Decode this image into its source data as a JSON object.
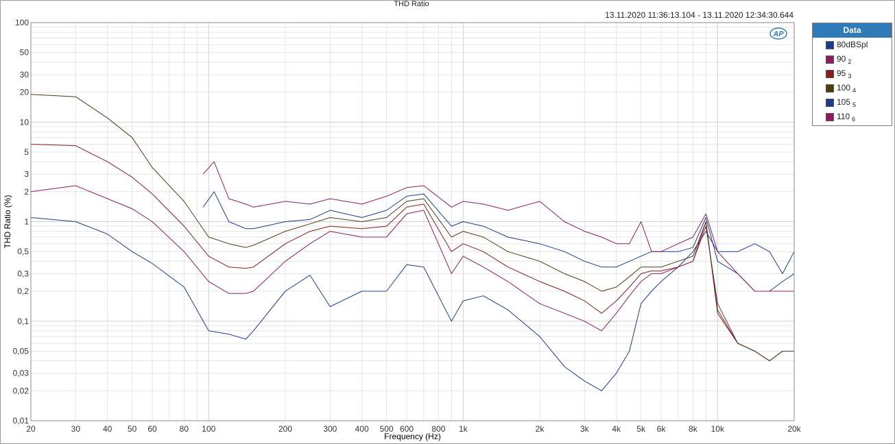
{
  "window": {
    "title": "THD Ratio",
    "time_range": "13.11.2020 11:36:13.104 - 13.11.2020 12:34:30.644"
  },
  "legend": {
    "header": "Data",
    "items": [
      {
        "label": "80dBSpl",
        "sub": "",
        "color": "#1a3b8c"
      },
      {
        "label": "90",
        "sub": "2",
        "color": "#8f1c5f"
      },
      {
        "label": "95",
        "sub": "3",
        "color": "#8a1c1c"
      },
      {
        "label": "100",
        "sub": "4",
        "color": "#4f3a10"
      },
      {
        "label": "105",
        "sub": "5",
        "color": "#1a3b8c"
      },
      {
        "label": "110",
        "sub": "6",
        "color": "#8f1c5f"
      }
    ]
  },
  "logo": {
    "text": "AP",
    "color": "#2e7bb8"
  },
  "chart_data": {
    "type": "line",
    "title": "THD Ratio",
    "xlabel": "Frequency (Hz)",
    "ylabel": "THD Ratio (%)",
    "x_scale": "log",
    "y_scale": "log",
    "xlim": [
      20,
      20000
    ],
    "ylim": [
      0.01,
      100
    ],
    "grid": true,
    "legend_position": "right",
    "x_ticks": [
      {
        "value": 20,
        "label": "20"
      },
      {
        "value": 30,
        "label": "30"
      },
      {
        "value": 40,
        "label": "40"
      },
      {
        "value": 50,
        "label": "50"
      },
      {
        "value": 60,
        "label": "60"
      },
      {
        "value": 80,
        "label": "80"
      },
      {
        "value": 100,
        "label": "100"
      },
      {
        "value": 200,
        "label": "200"
      },
      {
        "value": 300,
        "label": "300"
      },
      {
        "value": 400,
        "label": "400"
      },
      {
        "value": 500,
        "label": "500"
      },
      {
        "value": 600,
        "label": "600"
      },
      {
        "value": 800,
        "label": "800"
      },
      {
        "value": 1000,
        "label": "1k"
      },
      {
        "value": 2000,
        "label": "2k"
      },
      {
        "value": 3000,
        "label": "3k"
      },
      {
        "value": 4000,
        "label": "4k"
      },
      {
        "value": 5000,
        "label": "5k"
      },
      {
        "value": 6000,
        "label": "6k"
      },
      {
        "value": 8000,
        "label": "8k"
      },
      {
        "value": 10000,
        "label": "10k"
      },
      {
        "value": 20000,
        "label": "20k"
      }
    ],
    "y_ticks": [
      {
        "value": 100,
        "label": "100"
      },
      {
        "value": 50,
        "label": "50"
      },
      {
        "value": 30,
        "label": "30"
      },
      {
        "value": 20,
        "label": "20"
      },
      {
        "value": 10,
        "label": "10"
      },
      {
        "value": 5,
        "label": "5"
      },
      {
        "value": 3,
        "label": "3"
      },
      {
        "value": 2,
        "label": "2"
      },
      {
        "value": 1,
        "label": "1"
      },
      {
        "value": 0.5,
        "label": "0,5"
      },
      {
        "value": 0.3,
        "label": "0,3"
      },
      {
        "value": 0.2,
        "label": "0,2"
      },
      {
        "value": 0.1,
        "label": "0,1"
      },
      {
        "value": 0.05,
        "label": "0,05"
      },
      {
        "value": 0.03,
        "label": "0,03"
      },
      {
        "value": 0.02,
        "label": "0,02"
      },
      {
        "value": 0.01,
        "label": "0,01"
      }
    ],
    "series": [
      {
        "name": "80dBSpl",
        "color": "#1a3b8c",
        "x": [
          20,
          30,
          40,
          50,
          60,
          80,
          100,
          120,
          140,
          150,
          200,
          250,
          300,
          400,
          500,
          600,
          700,
          900,
          1000,
          1200,
          1500,
          2000,
          2500,
          3000,
          3500,
          4000,
          4500,
          5000,
          5500,
          6000,
          7000,
          8000,
          9000,
          10000,
          12000,
          14000,
          16000,
          18000,
          20000
        ],
        "y": [
          1.1,
          1.0,
          0.75,
          0.5,
          0.38,
          0.22,
          0.08,
          0.074,
          0.066,
          0.08,
          0.2,
          0.29,
          0.14,
          0.2,
          0.2,
          0.37,
          0.35,
          0.1,
          0.16,
          0.18,
          0.13,
          0.07,
          0.035,
          0.025,
          0.02,
          0.03,
          0.05,
          0.15,
          0.2,
          0.25,
          0.35,
          0.5,
          0.8,
          0.5,
          0.5,
          0.6,
          0.5,
          0.3,
          0.5
        ]
      },
      {
        "name": "90",
        "color": "#8f1c5f",
        "x": [
          20,
          30,
          40,
          50,
          60,
          80,
          100,
          120,
          140,
          150,
          200,
          250,
          300,
          400,
          500,
          600,
          700,
          900,
          1000,
          1200,
          1500,
          2000,
          2500,
          3000,
          3500,
          4000,
          4500,
          5000,
          5500,
          6000,
          7000,
          8000,
          9000,
          10000,
          12000,
          14000,
          16000,
          18000,
          20000
        ],
        "y": [
          2.0,
          2.3,
          1.7,
          1.35,
          1.0,
          0.5,
          0.25,
          0.19,
          0.19,
          0.2,
          0.4,
          0.6,
          0.8,
          0.7,
          0.7,
          1.2,
          1.3,
          0.3,
          0.45,
          0.35,
          0.25,
          0.15,
          0.12,
          0.1,
          0.08,
          0.12,
          0.18,
          0.25,
          0.3,
          0.3,
          0.35,
          0.4,
          0.9,
          0.15,
          0.06,
          0.05,
          0.04,
          0.05,
          0.05
        ]
      },
      {
        "name": "95",
        "color": "#8a1c1c",
        "x": [
          20,
          30,
          40,
          50,
          60,
          80,
          100,
          120,
          140,
          150,
          200,
          250,
          300,
          400,
          500,
          600,
          700,
          900,
          1000,
          1200,
          1500,
          2000,
          2500,
          3000,
          3500,
          4000,
          4500,
          5000,
          5500,
          6000,
          7000,
          8000,
          9000,
          10000,
          12000,
          14000,
          16000,
          18000,
          20000
        ],
        "y": [
          6.0,
          5.8,
          4.0,
          2.8,
          1.9,
          0.9,
          0.45,
          0.35,
          0.34,
          0.35,
          0.6,
          0.8,
          0.9,
          0.85,
          0.9,
          1.4,
          1.5,
          0.5,
          0.6,
          0.5,
          0.35,
          0.25,
          0.2,
          0.16,
          0.12,
          0.16,
          0.22,
          0.3,
          0.32,
          0.32,
          0.35,
          0.4,
          1.0,
          0.12,
          0.06,
          0.05,
          0.04,
          0.05,
          0.05
        ]
      },
      {
        "name": "100",
        "color": "#4f3a10",
        "x": [
          20,
          30,
          40,
          50,
          60,
          80,
          100,
          120,
          140,
          150,
          200,
          250,
          300,
          400,
          500,
          600,
          700,
          900,
          1000,
          1200,
          1500,
          2000,
          2500,
          3000,
          3500,
          4000,
          4500,
          5000,
          5500,
          6000,
          7000,
          8000,
          9000,
          10000,
          12000,
          14000,
          16000,
          18000,
          20000
        ],
        "y": [
          19.0,
          18.0,
          11.0,
          7.0,
          3.5,
          1.6,
          0.7,
          0.6,
          0.55,
          0.58,
          0.8,
          0.95,
          1.1,
          1.0,
          1.1,
          1.6,
          1.7,
          0.7,
          0.8,
          0.7,
          0.5,
          0.4,
          0.3,
          0.25,
          0.2,
          0.22,
          0.28,
          0.35,
          0.35,
          0.35,
          0.4,
          0.45,
          1.0,
          0.13,
          0.06,
          0.05,
          0.04,
          0.05,
          0.05
        ]
      },
      {
        "name": "105",
        "color": "#1a3b8c",
        "x": [
          95,
          105,
          120,
          140,
          150,
          200,
          250,
          300,
          400,
          500,
          600,
          700,
          900,
          1000,
          1200,
          1500,
          2000,
          2500,
          3000,
          3500,
          4000,
          4500,
          5000,
          5500,
          6000,
          7000,
          8000,
          9000,
          10000,
          12000,
          14000,
          16000,
          18000,
          20000
        ],
        "y": [
          1.4,
          2.0,
          1.0,
          0.85,
          0.85,
          1.0,
          1.05,
          1.3,
          1.1,
          1.3,
          1.8,
          1.9,
          0.9,
          1.0,
          0.9,
          0.7,
          0.6,
          0.5,
          0.4,
          0.35,
          0.35,
          0.4,
          0.45,
          0.5,
          0.5,
          0.5,
          0.55,
          1.1,
          0.4,
          0.3,
          0.2,
          0.2,
          0.25,
          0.3
        ]
      },
      {
        "name": "110",
        "color": "#8f1c5f",
        "x": [
          95,
          105,
          120,
          140,
          150,
          200,
          250,
          300,
          400,
          500,
          600,
          700,
          900,
          1000,
          1200,
          1500,
          2000,
          2500,
          3000,
          3500,
          4000,
          4500,
          5000,
          5500,
          6000,
          7000,
          8000,
          9000,
          10000,
          12000,
          14000,
          16000,
          18000,
          20000
        ],
        "y": [
          3.0,
          4.0,
          1.7,
          1.5,
          1.4,
          1.6,
          1.5,
          1.7,
          1.5,
          1.8,
          2.2,
          2.3,
          1.4,
          1.6,
          1.5,
          1.3,
          1.6,
          1.0,
          0.8,
          0.7,
          0.6,
          0.6,
          1.0,
          0.5,
          0.5,
          0.6,
          0.7,
          1.2,
          0.5,
          0.3,
          0.2,
          0.2,
          0.2,
          0.2
        ]
      }
    ]
  }
}
